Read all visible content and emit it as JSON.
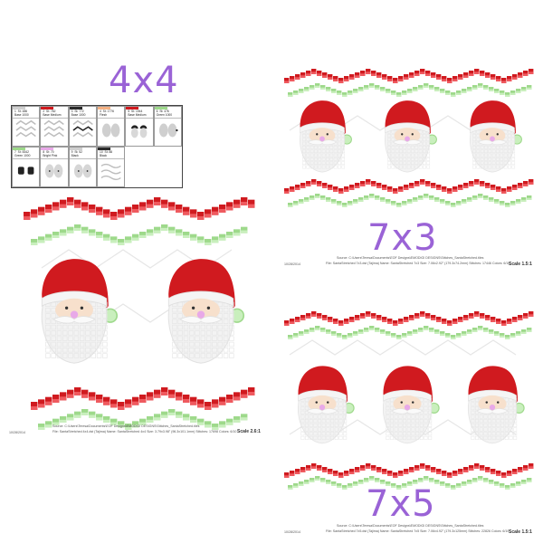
{
  "colors": {
    "red": "#d01a1f",
    "red_light": "#ef5a5f",
    "green": "#9ed98b",
    "green_light": "#c9efbd",
    "label": "#9a63d6",
    "beard": "#f3f3f3",
    "skin": "#f7e0cc",
    "nose": "#e8a9e8"
  },
  "labels": {
    "size_4x4": "4x4",
    "size_7x3": "7x3",
    "size_7x5": "7x5"
  },
  "sheets": {
    "s4x4": {
      "scale": "Scale 2.6:1",
      "date": "10/28/2014",
      "source": "Source: C:\\Users\\Teresa\\Documents\\EOF Designs\\EMODIGI DESIGNS\\Stitches_SantaStretched.tiles",
      "file": "File: SantaStretched 4x4.dst (Tajima)  Name: SantaStretched 4x4  Size: 3.79x3.98\" (96.3x101.1mm)  Stitches: 17698  Colors: 6/10"
    },
    "s7x3": {
      "scale": "Scale 1.5:1",
      "date": "10/28/2014",
      "source": "Source: C:\\Users\\Teresa\\Documents\\EOF Designs\\EMODIGI DESIGNS\\Stitches_SantaStretched.tiles",
      "file": "File: SantaStretched 7x3.dst (Tajima)  Name: SantaStretched 7x3  Size: 7.06x2.92\" (179.3x74.2mm)  Stitches: 17446  Colors: 6/10"
    },
    "s7x5": {
      "scale": "Scale 1.5:1",
      "date": "10/28/2014",
      "source": "Source: C:\\Users\\Teresa\\Documents\\EOF Designs\\EMODIGI DESIGNS\\Stitches_SantaStretched.tiles",
      "file": "File: SantaStretched 7x5.dst (Tajima)  Name: SantaStretched 7x5  Size: 7.06x4.92\" (179.3x125mm)  Stitches: 22826  Colors: 6/10"
    }
  },
  "swatches": [
    {
      "caption": "1  St: 486\nBase 1000",
      "color": "#cfcfcf",
      "art": "zigzag"
    },
    {
      "caption": "2  St: 782\nBase Medium",
      "color": "#d01a1f",
      "art": "zigzag"
    },
    {
      "caption": "3  St: 772\nBase 1000",
      "color": "#2a2a2a",
      "art": "zigzag2"
    },
    {
      "caption": "4  St: 1776\nFlesh",
      "color": "#f4b183",
      "art": "faces"
    },
    {
      "caption": "5  St: 1944\nBase Medium",
      "color": "#d01a1f",
      "art": "brows"
    },
    {
      "caption": "6  St: 476\nGreen 1000",
      "color": "#9ed98b",
      "art": "faces2"
    },
    {
      "caption": "7  St: 8342\nGreen 1000",
      "color": "#9ed98b",
      "art": "boots"
    },
    {
      "caption": "8  St: 70\nBright Pink",
      "color": "#e8a9e8",
      "art": "dots"
    },
    {
      "caption": "9  St: 52\nBlack",
      "color": "#cfcfcf",
      "art": "eyes"
    },
    {
      "caption": "10  St: 88\nBlack",
      "color": "#2a2a2a",
      "art": "wave"
    }
  ]
}
